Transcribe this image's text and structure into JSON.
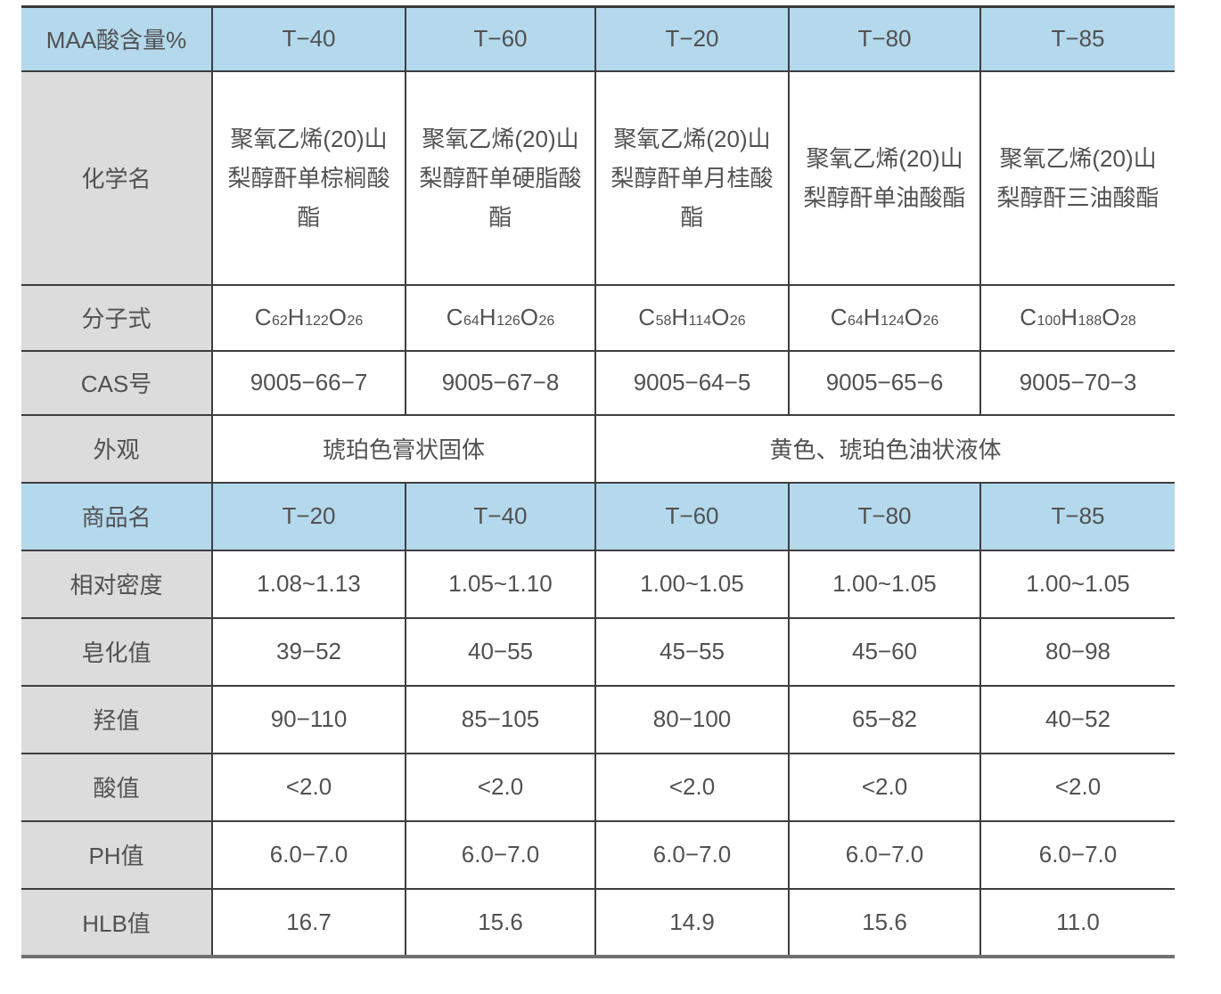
{
  "colors": {
    "header_blue": "#b4d9ec",
    "label_gray": "#dcdcdc",
    "text_gray": "#515153",
    "grid_line": "#3e3e40",
    "bottom_border": "#707072"
  },
  "table": {
    "columns": 6,
    "rows": [
      {
        "type": "header",
        "label": "MAA酸含量%",
        "cells": [
          "T−40",
          "T−60",
          "T−20",
          "T−80",
          "T−85"
        ]
      },
      {
        "type": "data",
        "label": "化学名",
        "cells": [
          "聚氧乙烯(20)山\n梨醇酐单棕榈酸酯",
          "聚氧乙烯(20)山\n梨醇酐单硬脂酸酯",
          "聚氧乙烯(20)山\n梨醇酐单月桂酸酯",
          "聚氧乙烯(20)山\n梨醇酐单油酸酯",
          "聚氧乙烯(20)山\n梨醇酐三油酸酯"
        ]
      },
      {
        "type": "formula",
        "label": "分子式",
        "cells": [
          "C62H122O26",
          "C64H126O26",
          "C58H114O26",
          "C64H124O26",
          "C100H188O28"
        ]
      },
      {
        "type": "data",
        "label": "CAS号",
        "cells": [
          "9005−66−7",
          "9005−67−8",
          "9005−64−5",
          "9005−65−6",
          "9005−70−3"
        ]
      },
      {
        "type": "merged",
        "label": "外观",
        "cells": [
          "琥珀色膏状固体",
          "黄色、琥珀色油状液体"
        ],
        "spans": [
          2,
          3
        ]
      },
      {
        "type": "header",
        "label": "商品名",
        "cells": [
          "T−20",
          "T−40",
          "T−60",
          "T−80",
          "T−85"
        ]
      },
      {
        "type": "data",
        "label": "相对密度",
        "cells": [
          "1.08~1.13",
          "1.05~1.10",
          "1.00~1.05",
          "1.00~1.05",
          "1.00~1.05"
        ]
      },
      {
        "type": "data",
        "label": "皂化值",
        "cells": [
          "39−52",
          "40−55",
          "45−55",
          "45−60",
          "80−98"
        ]
      },
      {
        "type": "data",
        "label": "羟值",
        "cells": [
          "90−110",
          "85−105",
          "80−100",
          "65−82",
          "40−52"
        ]
      },
      {
        "type": "data",
        "label": "酸值",
        "cells": [
          "<2.0",
          "<2.0",
          "<2.0",
          "<2.0",
          "<2.0"
        ]
      },
      {
        "type": "data",
        "label": "PH值",
        "cells": [
          "6.0−7.0",
          "6.0−7.0",
          "6.0−7.0",
          "6.0−7.0",
          "6.0−7.0"
        ]
      },
      {
        "type": "data",
        "label": "HLB值",
        "cells": [
          "16.7",
          "15.6",
          "14.9",
          "15.6",
          "11.0"
        ]
      }
    ]
  }
}
